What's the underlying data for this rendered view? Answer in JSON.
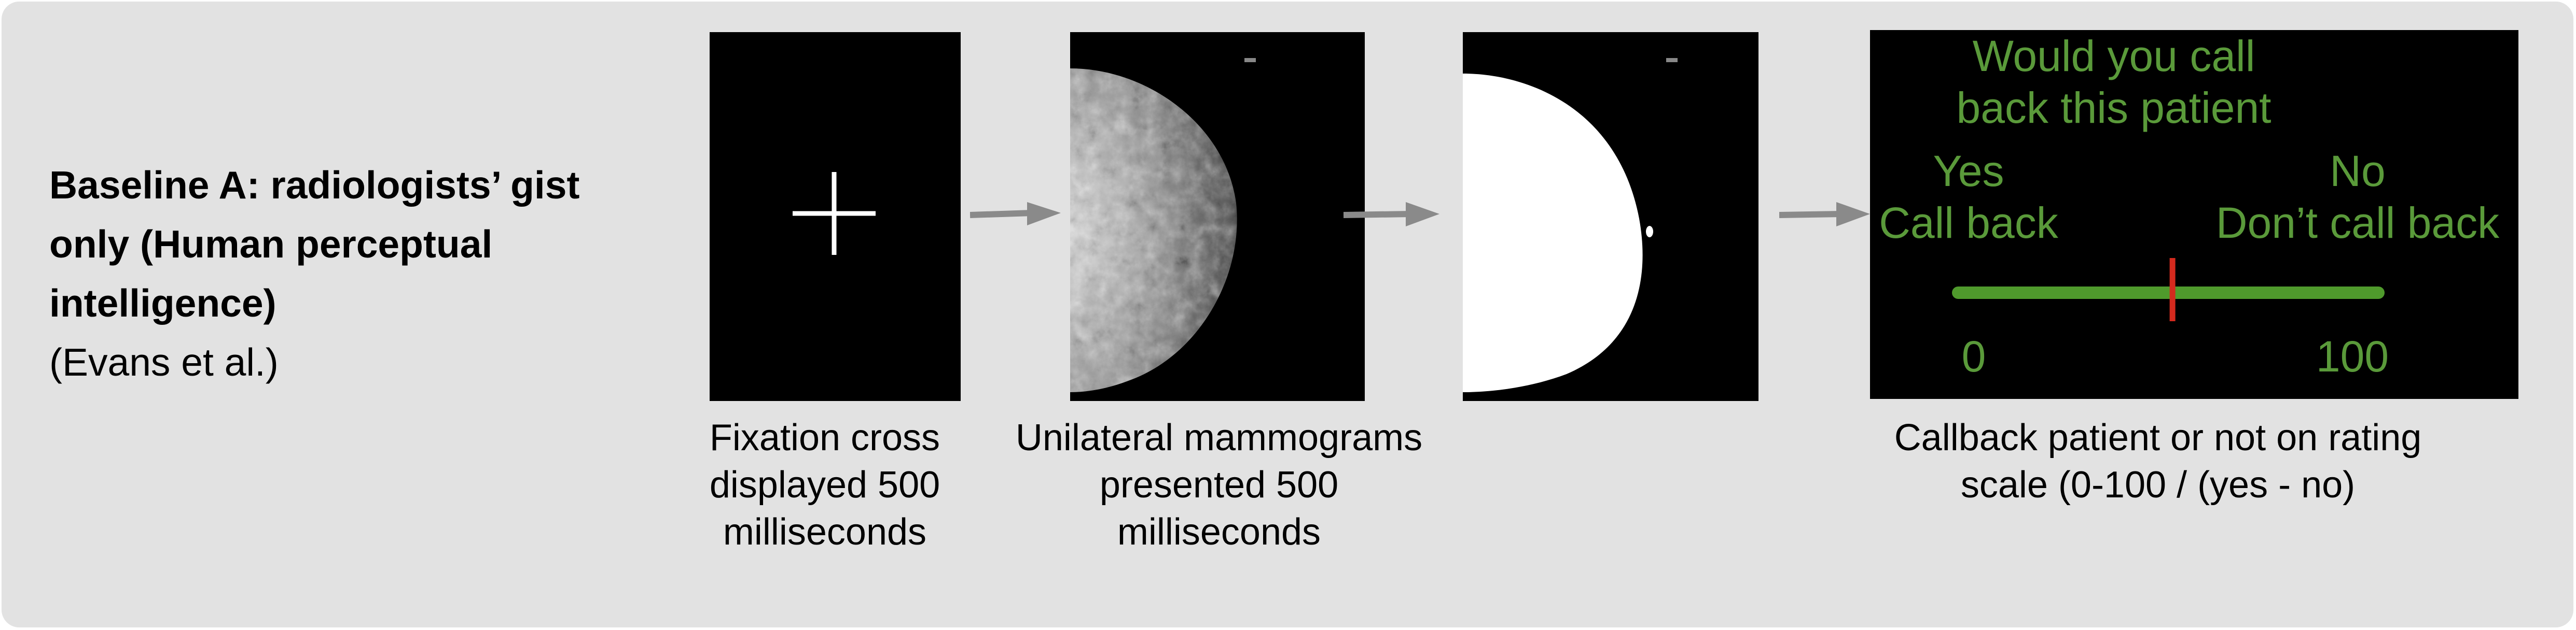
{
  "baseline": {
    "title_bold": "Baseline A: radiologists’ gist only (Human perceptual intelligence)",
    "citation": "(Evans et al.)"
  },
  "steps": [
    {
      "caption": "Fixation cross displayed 500 milliseconds"
    },
    {
      "caption": "Unilateral mammograms presented 500 milliseconds"
    },
    {
      "caption": ""
    },
    {
      "caption": "Callback patient or not on rating scale (0-100 / (yes - no)"
    }
  ],
  "rating_screen": {
    "question": "Would you call back this patient",
    "yes_label": "Yes",
    "yes_sub": "Call back",
    "no_label": "No",
    "no_sub": "Don’t call back",
    "scale_min": "0",
    "scale_max": "100",
    "marker_fraction": 0.51
  },
  "colors": {
    "panel": "#e2e2e2",
    "scale_text": "#5a9a3a",
    "scale_bar": "#4f9a2c",
    "marker": "#d42a1e",
    "arrow": "#8a8a8a"
  }
}
